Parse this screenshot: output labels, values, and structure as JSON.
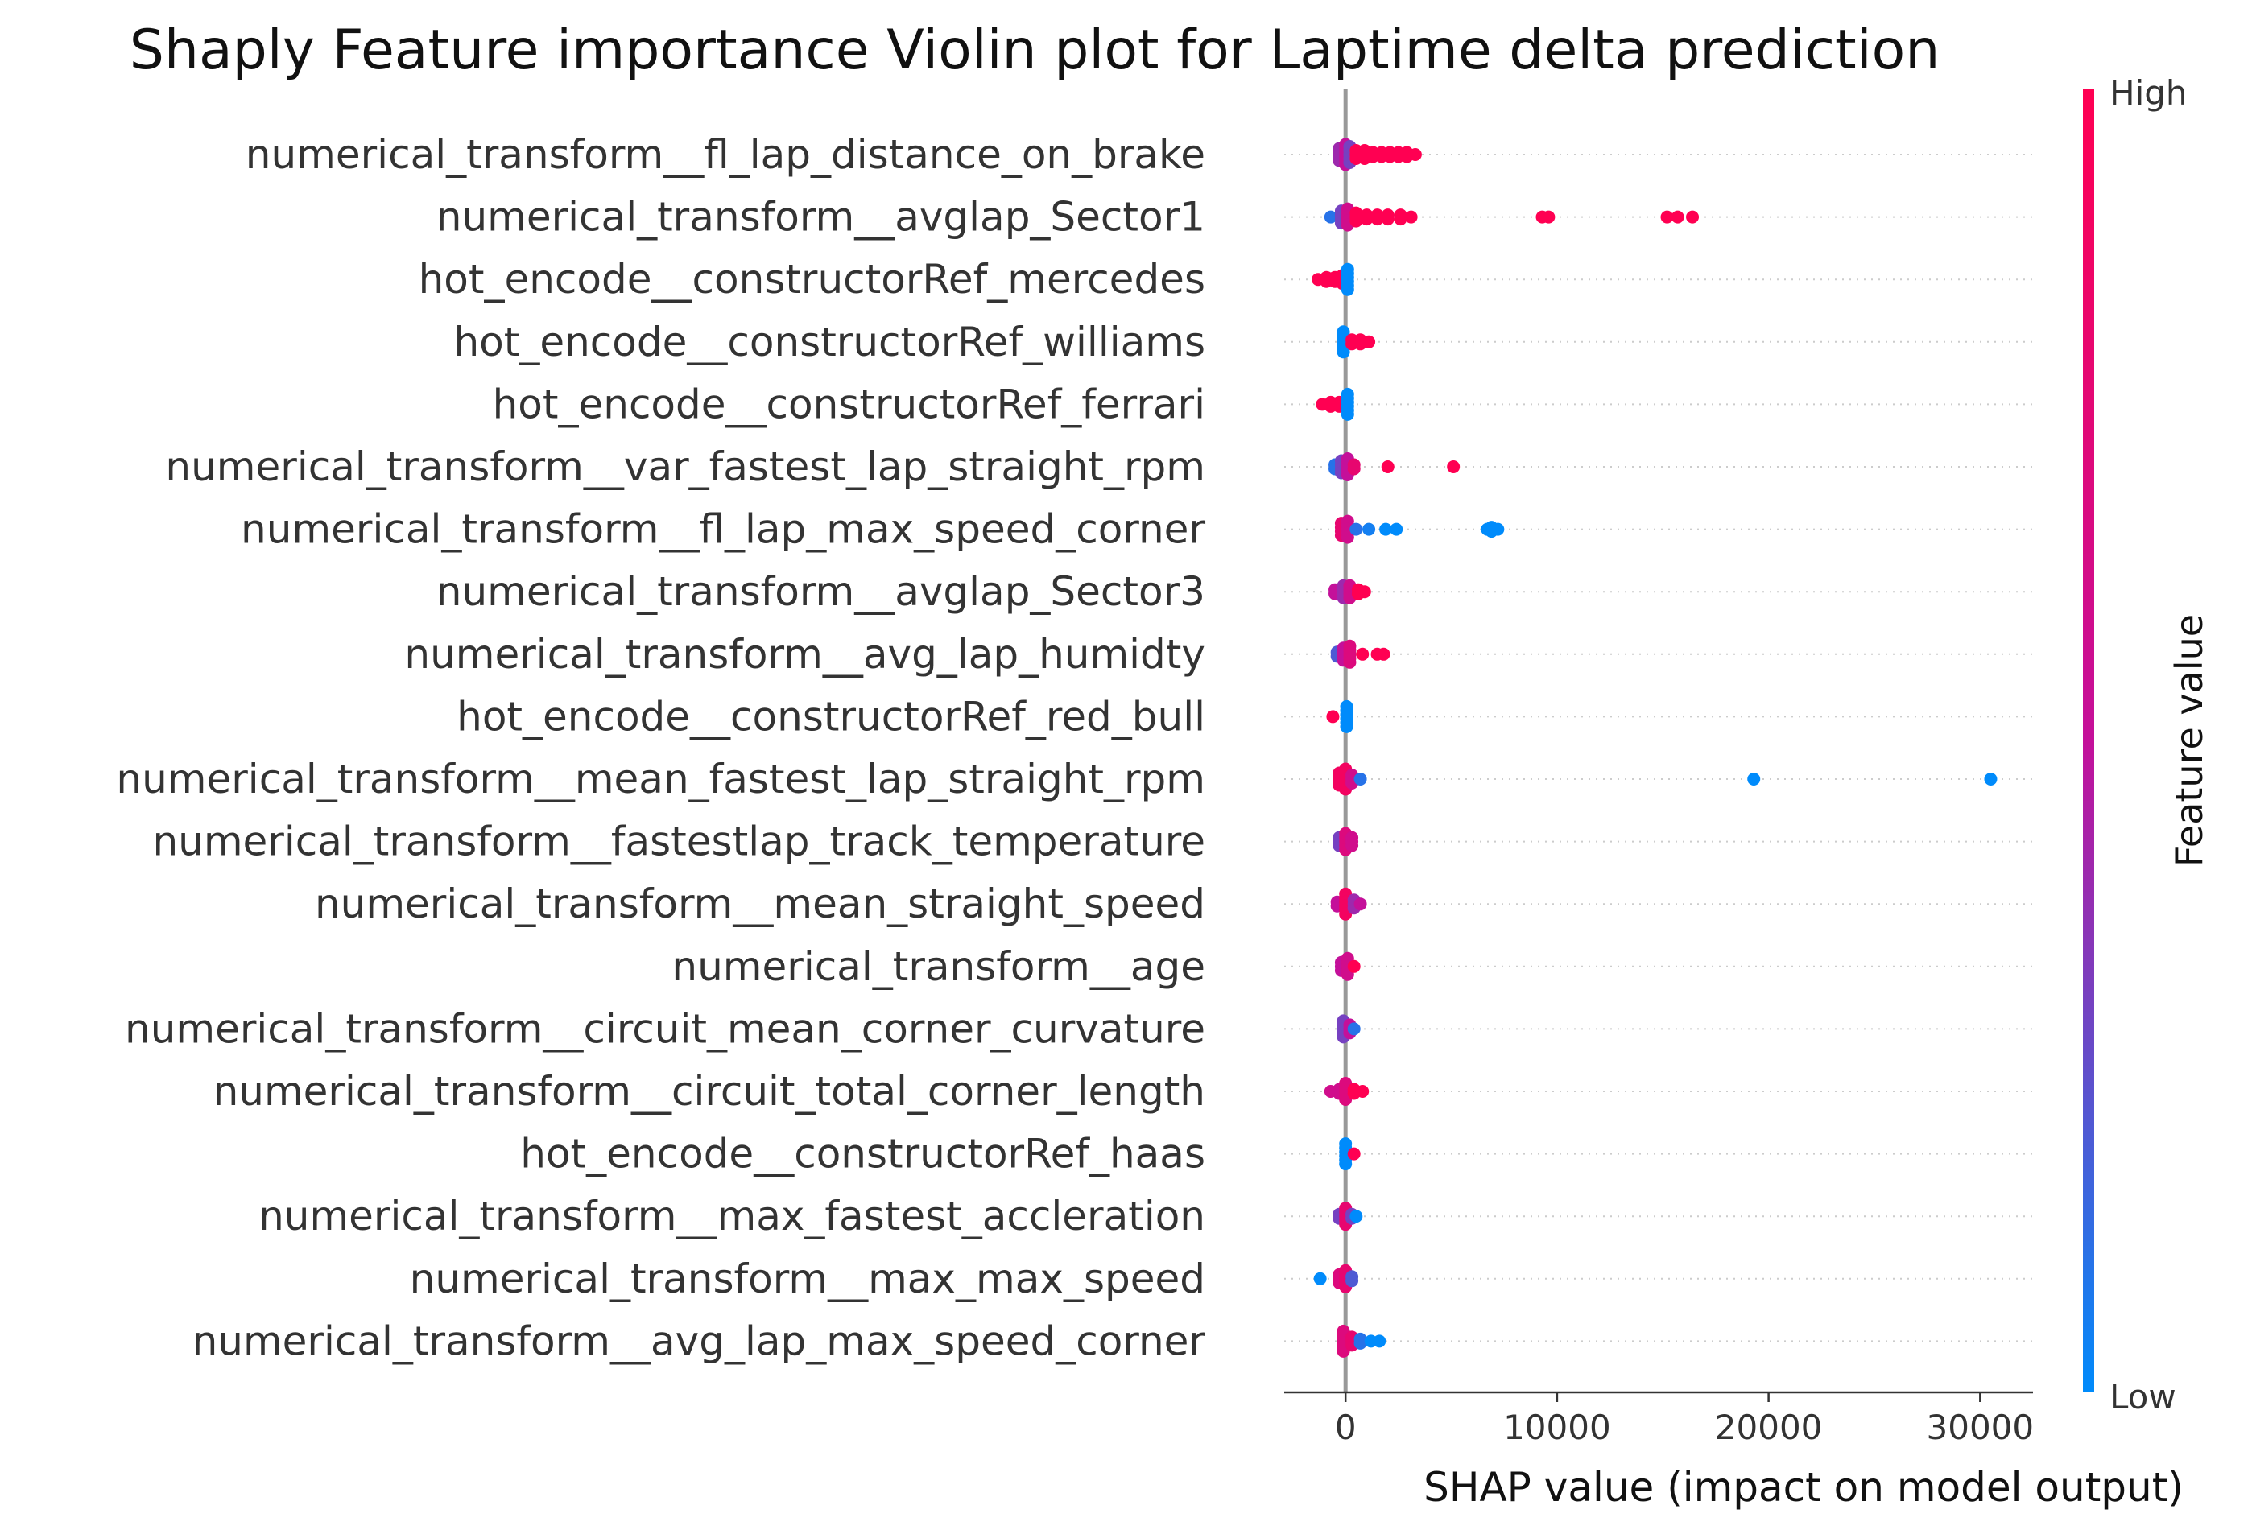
{
  "chart_data": {
    "type": "scatter",
    "title": "Shaply Feature importance Violin plot for Laptime delta prediction",
    "xlabel": "SHAP value (impact on model output)",
    "xlim": [
      -2900,
      32500
    ],
    "x_ticks": [
      0,
      10000,
      20000,
      30000
    ],
    "zero_line": true,
    "grid": "dotted horizontal per feature",
    "colorbar": {
      "label": "Feature value",
      "high_label": "High",
      "low_label": "Low",
      "high_color": "#ff0052",
      "mid_color": "#c4109a",
      "low_color": "#008bfb",
      "placement": "right"
    },
    "features": [
      {
        "name": "numerical_transform__fl_lap_distance_on_brake",
        "points": [
          {
            "x": -300,
            "v": 0.4,
            "spread": 4
          },
          {
            "x": 0,
            "v": 0.5,
            "spread": 6
          },
          {
            "x": 200,
            "v": 0.3,
            "spread": 5
          },
          {
            "x": 500,
            "v": 1,
            "spread": 3
          },
          {
            "x": 900,
            "v": 1,
            "spread": 3
          },
          {
            "x": 1300,
            "v": 1,
            "spread": 2
          },
          {
            "x": 1700,
            "v": 1,
            "spread": 2
          },
          {
            "x": 2100,
            "v": 1,
            "spread": 2
          },
          {
            "x": 2500,
            "v": 1,
            "spread": 2
          },
          {
            "x": 2900,
            "v": 1,
            "spread": 2
          },
          {
            "x": 3300,
            "v": 1,
            "spread": 1
          }
        ]
      },
      {
        "name": "numerical_transform__avglap_Sector1",
        "points": [
          {
            "x": -700,
            "v": 0.1,
            "spread": 1
          },
          {
            "x": -200,
            "v": 0.3,
            "spread": 4
          },
          {
            "x": 100,
            "v": 0.6,
            "spread": 5
          },
          {
            "x": 500,
            "v": 1,
            "spread": 3
          },
          {
            "x": 1000,
            "v": 1,
            "spread": 2
          },
          {
            "x": 1500,
            "v": 1,
            "spread": 2
          },
          {
            "x": 2000,
            "v": 1,
            "spread": 2
          },
          {
            "x": 2600,
            "v": 1,
            "spread": 2
          },
          {
            "x": 3100,
            "v": 1,
            "spread": 1
          },
          {
            "x": 9300,
            "v": 1,
            "spread": 1
          },
          {
            "x": 9600,
            "v": 1,
            "spread": 1
          },
          {
            "x": 15200,
            "v": 1,
            "spread": 1
          },
          {
            "x": 15700,
            "v": 1,
            "spread": 1
          },
          {
            "x": 16400,
            "v": 1,
            "spread": 1
          }
        ]
      },
      {
        "name": "hot_encode__constructorRef_mercedes",
        "points": [
          {
            "x": -1300,
            "v": 1,
            "spread": 1
          },
          {
            "x": -900,
            "v": 1,
            "spread": 2
          },
          {
            "x": -500,
            "v": 1,
            "spread": 2
          },
          {
            "x": -150,
            "v": 1,
            "spread": 3
          },
          {
            "x": 100,
            "v": 0,
            "spread": 6
          }
        ]
      },
      {
        "name": "hot_encode__constructorRef_williams",
        "points": [
          {
            "x": -100,
            "v": 0,
            "spread": 6
          },
          {
            "x": 300,
            "v": 1,
            "spread": 2
          },
          {
            "x": 700,
            "v": 1,
            "spread": 2
          },
          {
            "x": 1100,
            "v": 1,
            "spread": 1
          }
        ]
      },
      {
        "name": "hot_encode__constructorRef_ferrari",
        "points": [
          {
            "x": -1100,
            "v": 1,
            "spread": 1
          },
          {
            "x": -700,
            "v": 1,
            "spread": 2
          },
          {
            "x": -300,
            "v": 1,
            "spread": 2
          },
          {
            "x": 100,
            "v": 0,
            "spread": 6
          }
        ]
      },
      {
        "name": "numerical_transform__var_fastest_lap_straight_rpm",
        "points": [
          {
            "x": -500,
            "v": 0.1,
            "spread": 2
          },
          {
            "x": -200,
            "v": 0.3,
            "spread": 4
          },
          {
            "x": 100,
            "v": 0.5,
            "spread": 5
          },
          {
            "x": 400,
            "v": 0.8,
            "spread": 2
          },
          {
            "x": 2000,
            "v": 1,
            "spread": 1
          },
          {
            "x": 5100,
            "v": 1,
            "spread": 1
          }
        ]
      },
      {
        "name": "numerical_transform__fl_lap_max_speed_corner",
        "points": [
          {
            "x": -200,
            "v": 0.8,
            "spread": 4
          },
          {
            "x": 100,
            "v": 0.6,
            "spread": 5
          },
          {
            "x": 500,
            "v": 0.1,
            "spread": 1
          },
          {
            "x": 1100,
            "v": 0.05,
            "spread": 1
          },
          {
            "x": 1900,
            "v": 0,
            "spread": 1
          },
          {
            "x": 2400,
            "v": 0,
            "spread": 1
          },
          {
            "x": 6700,
            "v": 0,
            "spread": 1
          },
          {
            "x": 6900,
            "v": 0,
            "spread": 2
          },
          {
            "x": 7200,
            "v": 0,
            "spread": 1
          }
        ]
      },
      {
        "name": "numerical_transform__avglap_Sector3",
        "points": [
          {
            "x": -500,
            "v": 0.5,
            "spread": 2
          },
          {
            "x": -100,
            "v": 0.4,
            "spread": 4
          },
          {
            "x": 200,
            "v": 0.6,
            "spread": 4
          },
          {
            "x": 600,
            "v": 1,
            "spread": 2
          },
          {
            "x": 900,
            "v": 1,
            "spread": 1
          }
        ]
      },
      {
        "name": "numerical_transform__avg_lap_humidty",
        "points": [
          {
            "x": -400,
            "v": 0.2,
            "spread": 2
          },
          {
            "x": -100,
            "v": 0.5,
            "spread": 4
          },
          {
            "x": 200,
            "v": 0.7,
            "spread": 5
          },
          {
            "x": 800,
            "v": 1,
            "spread": 1
          },
          {
            "x": 1500,
            "v": 1,
            "spread": 1
          },
          {
            "x": 1800,
            "v": 1,
            "spread": 1
          }
        ]
      },
      {
        "name": "hot_encode__constructorRef_red_bull",
        "points": [
          {
            "x": -600,
            "v": 1,
            "spread": 1
          },
          {
            "x": 50,
            "v": 0,
            "spread": 6
          }
        ]
      },
      {
        "name": "numerical_transform__mean_fastest_lap_straight_rpm",
        "points": [
          {
            "x": -300,
            "v": 0.9,
            "spread": 4
          },
          {
            "x": 0,
            "v": 0.9,
            "spread": 6
          },
          {
            "x": 300,
            "v": 0.6,
            "spread": 3
          },
          {
            "x": 700,
            "v": 0.1,
            "spread": 1
          },
          {
            "x": 19300,
            "v": 0,
            "spread": 1
          },
          {
            "x": 30500,
            "v": 0,
            "spread": 1
          }
        ]
      },
      {
        "name": "numerical_transform__fastestlap_track_temperature",
        "points": [
          {
            "x": -300,
            "v": 0.3,
            "spread": 3
          },
          {
            "x": 0,
            "v": 0.7,
            "spread": 5
          },
          {
            "x": 300,
            "v": 0.6,
            "spread": 3
          }
        ]
      },
      {
        "name": "numerical_transform__mean_straight_speed",
        "points": [
          {
            "x": -400,
            "v": 0.5,
            "spread": 2
          },
          {
            "x": 0,
            "v": 0.9,
            "spread": 6
          },
          {
            "x": 400,
            "v": 0.4,
            "spread": 3
          },
          {
            "x": 700,
            "v": 0.5,
            "spread": 1
          }
        ]
      },
      {
        "name": "numerical_transform__age",
        "points": [
          {
            "x": -200,
            "v": 0.5,
            "spread": 3
          },
          {
            "x": 100,
            "v": 0.6,
            "spread": 5
          },
          {
            "x": 400,
            "v": 1,
            "spread": 1
          }
        ]
      },
      {
        "name": "numerical_transform__circuit_mean_corner_curvature",
        "points": [
          {
            "x": -100,
            "v": 0.3,
            "spread": 5
          },
          {
            "x": 200,
            "v": 0.5,
            "spread": 3
          },
          {
            "x": 400,
            "v": 0.1,
            "spread": 1
          }
        ]
      },
      {
        "name": "numerical_transform__circuit_total_corner_length",
        "points": [
          {
            "x": -700,
            "v": 0.6,
            "spread": 1
          },
          {
            "x": -300,
            "v": 0.6,
            "spread": 2
          },
          {
            "x": 0,
            "v": 0.7,
            "spread": 5
          },
          {
            "x": 400,
            "v": 1,
            "spread": 2
          },
          {
            "x": 800,
            "v": 1,
            "spread": 1
          }
        ]
      },
      {
        "name": "hot_encode__constructorRef_haas",
        "points": [
          {
            "x": 0,
            "v": 0,
            "spread": 6
          },
          {
            "x": 400,
            "v": 1,
            "spread": 1
          }
        ]
      },
      {
        "name": "numerical_transform__max_fastest_accleration",
        "points": [
          {
            "x": -300,
            "v": 0.3,
            "spread": 2
          },
          {
            "x": 0,
            "v": 0.8,
            "spread": 5
          },
          {
            "x": 300,
            "v": 0.3,
            "spread": 2
          },
          {
            "x": 500,
            "v": 0,
            "spread": 1
          }
        ]
      },
      {
        "name": "numerical_transform__max_max_speed",
        "points": [
          {
            "x": -1200,
            "v": 0,
            "spread": 1
          },
          {
            "x": -300,
            "v": 0.7,
            "spread": 3
          },
          {
            "x": 0,
            "v": 0.8,
            "spread": 5
          },
          {
            "x": 300,
            "v": 0.2,
            "spread": 2
          }
        ]
      },
      {
        "name": "numerical_transform__avg_lap_max_speed_corner",
        "points": [
          {
            "x": -100,
            "v": 0.7,
            "spread": 6
          },
          {
            "x": 300,
            "v": 0.8,
            "spread": 3
          },
          {
            "x": 700,
            "v": 0.1,
            "spread": 2
          },
          {
            "x": 1200,
            "v": 0,
            "spread": 1
          },
          {
            "x": 1600,
            "v": 0,
            "spread": 1
          }
        ]
      }
    ]
  }
}
